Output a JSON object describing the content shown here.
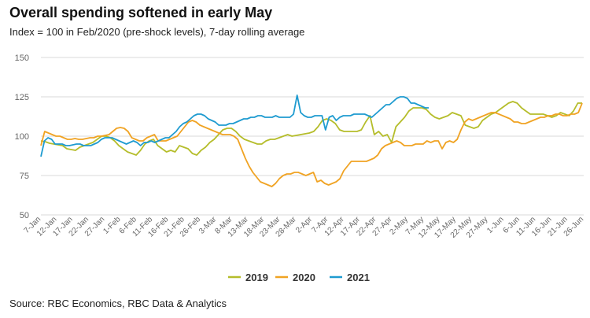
{
  "header": {
    "title": "Overall spending softened in early May",
    "subtitle": "Index = 100 in Feb/2020 (pre-shock levels), 7-day rolling average"
  },
  "footer": {
    "source": "Source: RBC Economics, RBC Data & Analytics"
  },
  "chart_data": {
    "type": "line",
    "title": "Overall spending softened in early May",
    "subtitle": "Index = 100 in Feb/2020 (pre-shock levels), 7-day rolling average",
    "ylim": [
      50,
      150
    ],
    "yticks": [
      50,
      75,
      100,
      125,
      150
    ],
    "grid": "horizontal",
    "legend_position": "bottom-center",
    "x_tick_labels": [
      "7-Jan",
      "12-Jan",
      "17-Jan",
      "22-Jan",
      "27-Jan",
      "1-Feb",
      "6-Feb",
      "11-Feb",
      "16-Feb",
      "21-Feb",
      "26-Feb",
      "3-Mar",
      "8-Mar",
      "13-Mar",
      "18-Mar",
      "23-Mar",
      "28-Mar",
      "2-Apr",
      "7-Apr",
      "12-Apr",
      "17-Apr",
      "22-Apr",
      "27-Apr",
      "2-May",
      "7-May",
      "12-May",
      "17-May",
      "22-May",
      "27-May",
      "1-Jun",
      "6-Jun",
      "11-Jun",
      "16-Jun",
      "21-Jun",
      "26-Jun"
    ],
    "series": [
      {
        "name": "2019",
        "color": "#b5bd2b",
        "values": [
          97,
          96.5,
          95.5,
          95,
          94.5,
          94,
          92,
          91.5,
          91,
          93,
          94,
          95,
          96,
          98,
          100,
          100,
          99,
          97,
          94,
          92,
          90,
          89,
          88,
          91,
          95,
          97,
          98,
          94,
          92,
          90,
          91,
          90,
          94,
          93,
          92,
          89,
          88,
          91,
          93,
          96,
          98,
          101,
          104,
          105,
          105,
          103,
          100,
          98,
          97,
          96,
          95,
          95,
          97,
          98,
          98,
          99,
          100,
          101,
          100,
          100.5,
          101,
          101.5,
          102,
          103,
          106,
          110,
          111,
          110,
          108,
          104,
          103,
          103,
          103,
          103,
          104,
          109,
          113,
          101,
          103,
          100,
          101,
          96,
          106,
          109,
          112,
          116,
          118,
          118,
          118,
          117,
          114,
          112,
          111,
          112,
          113,
          115,
          114,
          113,
          107,
          106,
          105,
          106,
          110,
          112,
          114,
          115,
          117,
          119,
          121,
          122,
          121,
          118,
          116,
          114,
          114,
          114,
          114,
          113,
          112,
          113,
          115,
          114,
          113,
          116,
          121,
          121
        ]
      },
      {
        "name": "2020",
        "color": "#f0a323",
        "values": [
          94,
          103,
          102,
          101,
          100,
          100,
          99,
          98,
          98,
          98.5,
          98,
          98,
          98.5,
          99,
          99,
          100,
          100,
          100.5,
          101,
          103,
          105,
          105.5,
          105,
          103,
          99,
          98,
          97,
          97,
          99,
          100,
          101,
          97,
          97,
          97,
          98,
          99,
          100,
          103,
          106,
          109,
          110,
          109,
          107,
          106,
          105,
          104,
          103,
          102,
          101,
          101,
          101,
          100,
          98,
          92,
          86,
          81,
          77,
          74,
          71,
          70,
          69,
          68,
          70,
          73,
          75,
          76,
          76,
          77,
          77,
          76,
          75,
          76,
          77,
          71,
          72,
          70,
          69,
          70,
          71,
          73,
          78,
          81,
          84,
          84,
          84,
          84,
          84,
          85,
          86,
          88,
          92,
          94,
          95,
          96,
          97,
          96,
          94,
          94,
          94,
          95,
          95,
          95,
          97,
          96,
          97,
          97,
          92,
          96,
          97,
          96,
          98,
          104,
          109,
          111,
          110,
          111,
          112,
          113,
          114,
          115,
          115,
          114,
          113,
          112,
          111,
          109,
          109,
          108,
          108,
          109,
          110,
          111,
          112,
          112,
          113,
          113,
          114,
          114,
          113,
          113,
          114,
          114,
          115,
          121
        ]
      },
      {
        "name": "2021",
        "color": "#1e9bd0",
        "values": [
          87,
          97,
          99,
          98,
          95,
          95,
          95,
          94,
          94,
          94.5,
          95,
          95,
          94,
          94,
          94,
          95,
          96,
          98,
          99,
          99,
          99,
          98,
          97,
          96,
          95,
          96,
          97,
          96,
          94,
          96,
          96,
          97,
          96,
          97,
          98,
          99,
          99,
          101,
          103,
          106,
          108,
          109,
          111,
          113,
          114,
          114,
          113,
          111,
          110,
          109,
          107,
          107,
          107,
          108,
          108,
          109,
          110,
          111,
          111,
          112,
          112,
          113,
          113,
          112,
          112,
          112,
          113,
          112,
          112,
          112,
          112,
          114,
          126,
          115,
          113,
          112,
          112,
          113,
          113,
          113,
          104,
          112,
          113,
          110,
          112,
          113,
          113,
          113,
          114,
          114,
          114,
          114,
          113,
          112,
          114,
          116,
          118,
          120,
          120,
          122,
          124,
          125,
          125,
          124,
          121,
          121,
          120,
          119,
          118,
          118
        ]
      }
    ]
  }
}
